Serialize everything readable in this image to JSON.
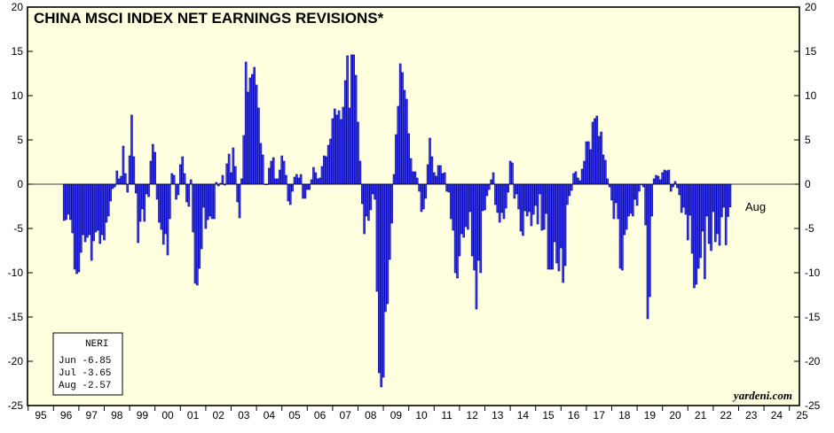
{
  "chart_data": {
    "type": "bar",
    "title": "CHINA MSCI INDEX NET EARNINGS REVISIONS*",
    "credit": "yardeni.com",
    "annotation": "Aug",
    "ylim": [
      -25,
      20
    ],
    "y_ticks": [
      "20",
      "15",
      "10",
      "5",
      "0",
      "-5",
      "-10",
      "-15",
      "-20",
      "-25"
    ],
    "x_ticks": [
      "95",
      "96",
      "97",
      "98",
      "99",
      "00",
      "01",
      "02",
      "03",
      "04",
      "05",
      "06",
      "07",
      "08",
      "09",
      "10",
      "11",
      "12",
      "13",
      "14",
      "15",
      "16",
      "17",
      "18",
      "19",
      "20",
      "21",
      "22",
      "23",
      "24",
      "25"
    ],
    "grid": false,
    "zero_line": true,
    "legend_box": {
      "title": "NERI",
      "rows": [
        "Jun -6.85",
        "Jul -3.65",
        "Aug -2.57"
      ]
    },
    "colors": {
      "plot_background": "#ffffe0",
      "bar_fill": "#3a3aff",
      "bar_edge": "#00008b"
    },
    "series": [
      {
        "start": "1995-12",
        "frequency": "monthly",
        "values": [
          -4.1,
          -4.0,
          -3.4,
          -4.0,
          -5.5,
          -9.6,
          -10.1,
          -9.9,
          -7.7,
          -5.7,
          -6.5,
          -6.0,
          -5.7,
          -8.6,
          -6.4,
          -5.4,
          -5.2,
          -6.7,
          -5.7,
          -6.3,
          -4.3,
          -3.6,
          -1.9,
          -0.5,
          -0.3,
          1.5,
          0.6,
          0.9,
          4.3,
          1.2,
          -0.9,
          3.2,
          7.8,
          3.1,
          -1.0,
          -6.6,
          -4.2,
          -2.8,
          -4.2,
          -1.1,
          -1.4,
          2.6,
          4.5,
          3.6,
          -1.7,
          -4.3,
          -5.1,
          -6.8,
          -5.6,
          -8.0,
          -3.9,
          1.2,
          1.0,
          -1.7,
          -1.2,
          2.2,
          3.1,
          1.2,
          -2.0,
          -2.5,
          0.5,
          -5.4,
          -11.2,
          -11.4,
          -9.5,
          -7.3,
          -2.6,
          -5.0,
          -4.0,
          -3.6,
          -3.9,
          -3.9,
          0.2,
          -0.2,
          0.1,
          1.0,
          -0.1,
          2.3,
          3.4,
          1.3,
          4.1,
          2.0,
          -2.0,
          -3.8,
          0.6,
          5.5,
          13.8,
          10.4,
          12.0,
          12.4,
          13.2,
          11.2,
          8.6,
          4.6,
          3.3,
          0.0,
          0.0,
          1.8,
          2.6,
          3.0,
          0.6,
          0.6,
          1.6,
          3.2,
          2.6,
          1.0,
          -1.9,
          -2.3,
          -0.8,
          0.8,
          1.1,
          0.7,
          1.1,
          -1.6,
          -1.6,
          -0.6,
          -0.6,
          0.5,
          1.9,
          1.3,
          0.6,
          0.7,
          2.0,
          3.2,
          3.1,
          4.4,
          5.1,
          7.4,
          8.5,
          7.8,
          8.3,
          7.3,
          8.7,
          11.7,
          14.5,
          8.6,
          14.6,
          14.6,
          12.3,
          7.0,
          2.6,
          -2.2,
          -5.6,
          -3.6,
          -4.1,
          -2.9,
          -1.1,
          -1.7,
          -12.1,
          -21.3,
          -22.9,
          -21.8,
          -14.4,
          -13.5,
          -8.5,
          -4.4,
          1.1,
          5.6,
          8.8,
          13.6,
          12.6,
          10.6,
          9.6,
          5.7,
          2.9,
          1.4,
          1.4,
          0.7,
          -0.8,
          -3.1,
          -2.8,
          -1.6,
          2.2,
          5.2,
          3.1,
          1.3,
          0.9,
          2.1,
          2.1,
          1.2,
          1.3,
          -0.8,
          -0.9,
          -3.9,
          -5.2,
          -10.0,
          -10.6,
          -8.1,
          -5.6,
          -6.0,
          -4.8,
          -5.1,
          -3.1,
          -8.1,
          -9.7,
          -14.1,
          -8.6,
          -10.0,
          -3.0,
          -2.9,
          -1.3,
          -0.6,
          0.5,
          1.3,
          -2.3,
          -3.2,
          -4.3,
          -3.2,
          -3.9,
          -2.7,
          -0.9,
          2.6,
          2.4,
          -1.6,
          -1.1,
          -2.8,
          -5.3,
          -5.8,
          -3.0,
          -3.6,
          -3.1,
          -4.7,
          -3.4,
          -2.4,
          -4.5,
          -1.1,
          -5.2,
          -5.1,
          -3.3,
          -9.6,
          -9.6,
          -9.6,
          -6.5,
          -8.9,
          -9.8,
          -7.2,
          -11.1,
          -9.2,
          -2.3,
          -1.3,
          -0.7,
          1.2,
          1.4,
          0.7,
          0.4,
          1.7,
          2.6,
          4.8,
          4.8,
          3.9,
          7.0,
          7.4,
          7.7,
          5.4,
          5.9,
          3.3,
          2.7,
          0.6,
          -0.3,
          -1.8,
          -3.9,
          -2.1,
          -3.9,
          -9.5,
          -9.7,
          -5.7,
          -5.1,
          -3.6,
          -3.3,
          -3.6,
          -1.7,
          -2.4,
          -0.8,
          0.0,
          -0.3,
          -4.6,
          -15.2,
          -12.7,
          -3.6,
          0.6,
          1.0,
          0.9,
          0.5,
          1.3,
          1.6,
          1.5,
          1.6,
          -0.8,
          -0.3,
          0.3,
          -0.4,
          -1.2,
          -3.2,
          -2.6,
          -3.4,
          -6.3,
          -3.5,
          -7.8,
          -11.7,
          -11.3,
          -9.5,
          -8.3,
          -5.3,
          -10.7,
          -3.6,
          -6.7,
          -7.5,
          -3.1,
          -6.5,
          -5.6,
          -6.9,
          -3.7,
          -2.6,
          -6.85,
          -3.65,
          -2.57
        ]
      }
    ]
  }
}
